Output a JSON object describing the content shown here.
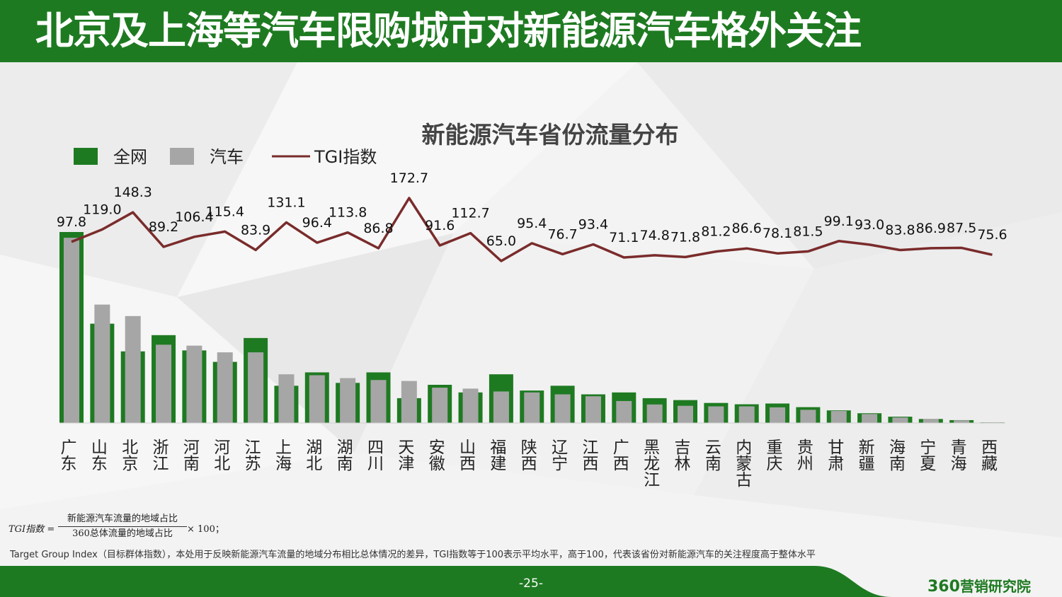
{
  "header": {
    "title": "北京及上海等汽车限购城市对新能源汽车格外关注"
  },
  "colors": {
    "header_green": "#1e7a21",
    "bar_all": "#1e7a21",
    "bar_car": "#a6a6a6",
    "tgi_line": "#7a2b2b"
  },
  "chart_data": {
    "type": "bar",
    "title": "新能源汽车省份流量分布",
    "legend": {
      "position": "top-left",
      "entries": [
        "全网",
        "汽车",
        "TGI指数"
      ]
    },
    "categories": [
      "广东",
      "山东",
      "北京",
      "浙江",
      "河南",
      "河北",
      "江苏",
      "上海",
      "湖北",
      "湖南",
      "四川",
      "天津",
      "安徽",
      "山西",
      "福建",
      "陕西",
      "辽宁",
      "江西",
      "广西",
      "黑龙江",
      "吉林",
      "云南",
      "内蒙古",
      "重庆",
      "贵州",
      "甘肃",
      "新疆",
      "海南",
      "宁夏",
      "青海",
      "西藏"
    ],
    "series": [
      {
        "name": "全网",
        "kind": "bar",
        "values": [
          100,
          52,
          37.5,
          46,
          38,
          32,
          44.5,
          19.5,
          26.5,
          21,
          26.5,
          13,
          20,
          16,
          25.5,
          17,
          19.5,
          15,
          16,
          13,
          12,
          10.5,
          9.8,
          10.2,
          8.3,
          6.6,
          5.1,
          3.3,
          2.1,
          1.5,
          0.3
        ]
      },
      {
        "name": "汽车",
        "kind": "bar",
        "values": [
          97,
          62,
          56,
          41,
          40.5,
          37,
          37,
          25.5,
          25,
          23.5,
          22.5,
          22,
          18.5,
          18,
          16.5,
          16,
          15,
          14,
          11.5,
          9.7,
          9,
          8.7,
          8.7,
          8.2,
          6.9,
          6.3,
          4.7,
          2.9,
          2.1,
          1.4,
          0.3
        ]
      },
      {
        "name": "TGI指数",
        "kind": "line",
        "values": [
          97.8,
          119.0,
          148.3,
          89.2,
          106.4,
          115.4,
          83.9,
          131.1,
          96.4,
          113.8,
          86.8,
          172.7,
          91.6,
          112.7,
          65.0,
          95.4,
          76.7,
          93.4,
          71.1,
          74.8,
          71.8,
          81.2,
          86.6,
          78.1,
          81.5,
          99.1,
          93.0,
          83.8,
          86.9,
          87.5,
          75.6
        ],
        "labels": [
          "97.8",
          "119.0",
          "148.3",
          "89.2",
          "106.4",
          "115.4",
          "83.9",
          "131.1",
          "96.4",
          "113.8",
          "86.8",
          "172.7",
          "91.6",
          "112.7",
          "65.0",
          "95.4",
          "76.7",
          "93.4",
          "71.1",
          "74.8",
          "71.8",
          "81.2",
          "86.6",
          "78.1",
          "81.5",
          "99.1",
          "93.0",
          "83.8",
          "86.9",
          "87.5",
          "75.6"
        ]
      }
    ]
  },
  "formula": {
    "lhs": "TGI指数 =",
    "numerator": "新能源汽车流量的地域占比",
    "denominator": "360总体流量的地域占比",
    "rhs": "× 100；"
  },
  "note": "Target Group Index（目标群体指数），本处用于反映新能源汽车流量的地域分布相比总体情况的差异，TGI指数等于100表示平均水平，高于100，代表该省份对新能源汽车的关注程度高于整体水平",
  "footer": {
    "page": "-25-",
    "logo_digits": "360",
    "logo_text": "营销研究院"
  }
}
